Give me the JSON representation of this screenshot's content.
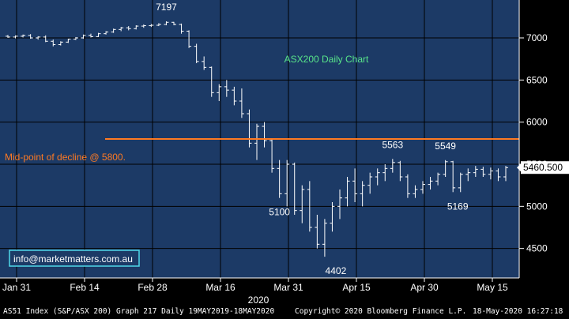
{
  "chart_data": {
    "type": "bar",
    "subtype": "ohlc",
    "title": "ASX200 Daily Chart",
    "xlabel": "",
    "ylabel": "",
    "x_year_label": "2020",
    "x_ticks": [
      "Jan 31",
      "Feb 14",
      "Feb 28",
      "Mar 16",
      "Mar 31",
      "Apr 15",
      "Apr 30",
      "May 15"
    ],
    "y_ticks": [
      4500,
      5000,
      5500,
      6000,
      6500,
      7000
    ],
    "ylim": [
      4150,
      7450
    ],
    "grid": true,
    "annotations": [
      {
        "text": "7197",
        "value": 7197
      },
      {
        "text": "4402",
        "value": 4402
      },
      {
        "text": "5563",
        "value": 5563
      },
      {
        "text": "5549",
        "value": 5549
      },
      {
        "text": "5100",
        "value": 5100
      },
      {
        "text": "5169",
        "value": 5169
      }
    ],
    "reference_line": {
      "value": 5800,
      "label": "Mid-point of decline @ 5800.",
      "color": "#ff7a22"
    },
    "last_price": {
      "value": 5460.5,
      "label": "5460.500"
    },
    "watermark": "info@marketmatters.com.au",
    "bars": [
      [
        7020,
        7035,
        7000,
        7010
      ],
      [
        7010,
        7030,
        6995,
        7020
      ],
      [
        7020,
        7040,
        7005,
        7030
      ],
      [
        7030,
        7045,
        6990,
        7000
      ],
      [
        7000,
        7020,
        6980,
        7010
      ],
      [
        7010,
        7030,
        6950,
        6960
      ],
      [
        6960,
        6980,
        6900,
        6920
      ],
      [
        6920,
        6960,
        6910,
        6950
      ],
      [
        6950,
        6990,
        6940,
        6985
      ],
      [
        6985,
        7010,
        6975,
        7000
      ],
      [
        7000,
        7040,
        6990,
        7030
      ],
      [
        7030,
        7050,
        7005,
        7015
      ],
      [
        7015,
        7060,
        7010,
        7050
      ],
      [
        7050,
        7080,
        7040,
        7070
      ],
      [
        7070,
        7110,
        7060,
        7100
      ],
      [
        7100,
        7130,
        7080,
        7120
      ],
      [
        7120,
        7140,
        7090,
        7110
      ],
      [
        7110,
        7150,
        7100,
        7140
      ],
      [
        7140,
        7160,
        7120,
        7145
      ],
      [
        7145,
        7165,
        7130,
        7150
      ],
      [
        7150,
        7175,
        7140,
        7160
      ],
      [
        7160,
        7197,
        7150,
        7185
      ],
      [
        7185,
        7190,
        7150,
        7160
      ],
      [
        7160,
        7170,
        7050,
        7080
      ],
      [
        7080,
        7090,
        6880,
        6900
      ],
      [
        6900,
        6930,
        6700,
        6720
      ],
      [
        6720,
        6780,
        6620,
        6650
      ],
      [
        6650,
        6660,
        6300,
        6350
      ],
      [
        6350,
        6450,
        6250,
        6420
      ],
      [
        6420,
        6500,
        6300,
        6380
      ],
      [
        6380,
        6420,
        6200,
        6250
      ],
      [
        6250,
        6400,
        6050,
        6100
      ],
      [
        6100,
        6150,
        5700,
        5750
      ],
      [
        5750,
        5980,
        5550,
        5950
      ],
      [
        5950,
        6000,
        5700,
        5780
      ],
      [
        5780,
        5800,
        5400,
        5450
      ],
      [
        5450,
        5550,
        5100,
        5150
      ],
      [
        5150,
        5550,
        5000,
        5500
      ],
      [
        5500,
        5520,
        4900,
        4950
      ],
      [
        4950,
        5250,
        4800,
        5200
      ],
      [
        5200,
        5300,
        4700,
        4750
      ],
      [
        4750,
        4900,
        4500,
        4550
      ],
      [
        4550,
        4850,
        4402,
        4800
      ],
      [
        4800,
        5050,
        4700,
        5000
      ],
      [
        5000,
        5200,
        4850,
        5100
      ],
      [
        5100,
        5350,
        5000,
        5300
      ],
      [
        5300,
        5450,
        5050,
        5150
      ],
      [
        5150,
        5300,
        5000,
        5250
      ],
      [
        5250,
        5400,
        5150,
        5350
      ],
      [
        5350,
        5450,
        5250,
        5400
      ],
      [
        5400,
        5500,
        5300,
        5450
      ],
      [
        5450,
        5563,
        5400,
        5520
      ],
      [
        5520,
        5540,
        5300,
        5350
      ],
      [
        5350,
        5380,
        5100,
        5150
      ],
      [
        5150,
        5250,
        5100,
        5200
      ],
      [
        5200,
        5300,
        5150,
        5260
      ],
      [
        5260,
        5350,
        5200,
        5300
      ],
      [
        5300,
        5400,
        5250,
        5380
      ],
      [
        5380,
        5549,
        5350,
        5530
      ],
      [
        5530,
        5540,
        5169,
        5220
      ],
      [
        5220,
        5400,
        5169,
        5380
      ],
      [
        5380,
        5450,
        5300,
        5400
      ],
      [
        5400,
        5480,
        5350,
        5440
      ],
      [
        5440,
        5470,
        5350,
        5380
      ],
      [
        5380,
        5460,
        5320,
        5420
      ],
      [
        5420,
        5450,
        5300,
        5350
      ],
      [
        5350,
        5480,
        5300,
        5460
      ]
    ]
  }
}
